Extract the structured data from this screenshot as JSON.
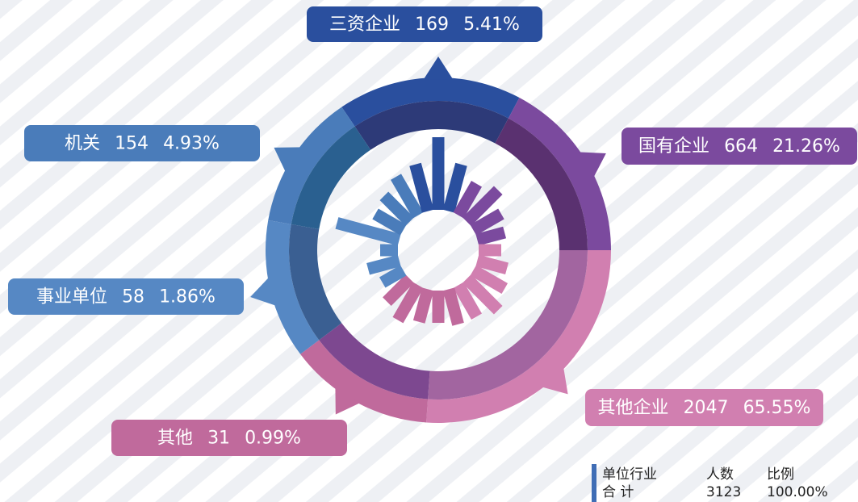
{
  "segments": [
    {
      "name": "三资企业",
      "count": "169",
      "percent": "5.41%"
    },
    {
      "name": "国有企业",
      "count": "664",
      "percent": "21.26%"
    },
    {
      "name": "其他企业",
      "count": "2047",
      "percent": "65.55%"
    },
    {
      "name": "其他",
      "count": "31",
      "percent": "0.99%"
    },
    {
      "name": "事业单位",
      "count": "58",
      "percent": "1.86%"
    },
    {
      "name": "机关",
      "count": "154",
      "percent": "4.93%"
    }
  ],
  "summary": {
    "headers": [
      "单位行业",
      "人数",
      "比例"
    ],
    "row": [
      "合 计",
      "3123",
      "100.00%"
    ]
  }
}
